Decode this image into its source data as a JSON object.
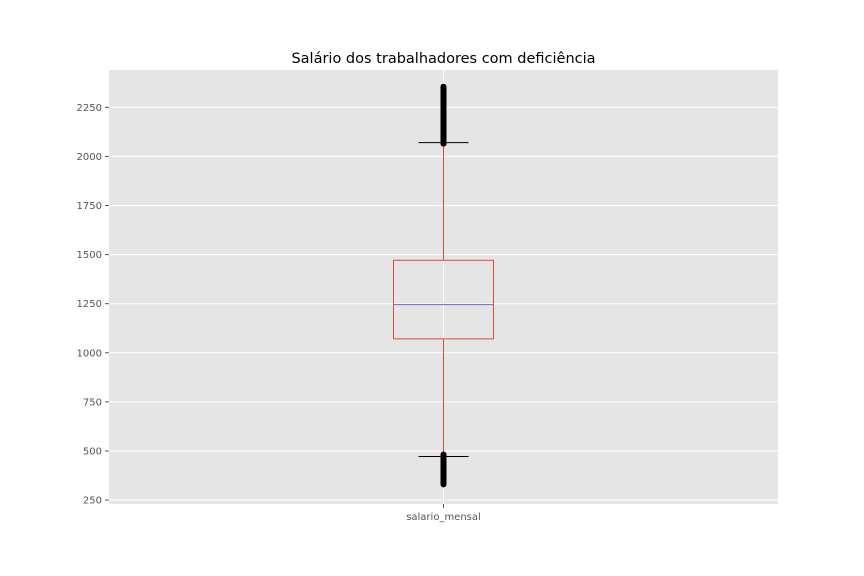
{
  "chart_data": {
    "type": "box",
    "title": "Salário dos trabalhadores com deficiência",
    "xlabel": "",
    "ylabel": "",
    "categories": [
      "salario_mensal"
    ],
    "boxes": [
      {
        "category": "salario_mensal",
        "whisker_low": 472,
        "q1": 1071,
        "median": 1245,
        "q3": 1471,
        "whisker_high": 2070,
        "outliers_low_range": [
          330,
          482
        ],
        "outliers_high_range": [
          2065,
          2355
        ]
      }
    ],
    "ylim": [
      230,
      2440
    ],
    "yticks": [
      250,
      500,
      750,
      1000,
      1250,
      1500,
      1750,
      2000,
      2250
    ],
    "grid": true,
    "colors": {
      "background": "#e5e5e5",
      "grid": "#ffffff",
      "box": "#e24a33",
      "whisker": "#e24a33",
      "median": "#6d6ab7",
      "caps": "#000000",
      "outliers": "#000000"
    }
  }
}
